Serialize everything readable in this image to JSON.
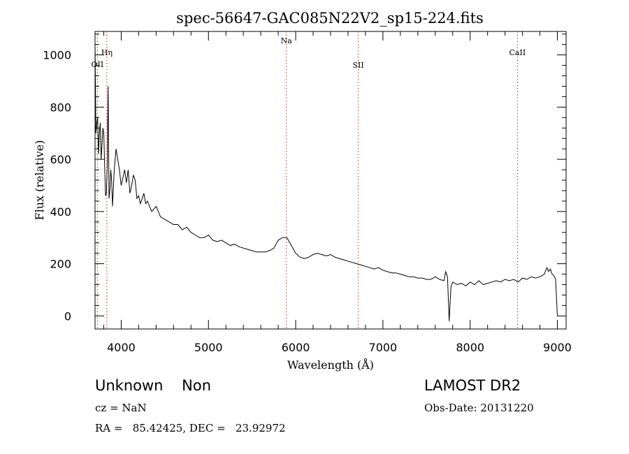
{
  "chart_data": {
    "type": "line",
    "title": "spec-56647-GAC085N22V2_sp15-224.fits",
    "xlabel": "Wavelength (Å)",
    "ylabel": "Flux (relative)",
    "xlim": [
      3700,
      9100
    ],
    "ylim": [
      -50,
      1090
    ],
    "xticks": [
      4000,
      5000,
      6000,
      7000,
      8000,
      9000
    ],
    "yticks": [
      0,
      200,
      400,
      600,
      800,
      1000
    ],
    "grid": false,
    "line_color": "#000000",
    "marker_color": "#c0504d",
    "line_markers": [
      {
        "label": "OII",
        "x": 3727
      },
      {
        "label": "Hη",
        "x": 3835
      },
      {
        "label": "Na",
        "x": 5893
      },
      {
        "label": "SII",
        "x": 6717
      },
      {
        "label": "CaII",
        "x": 8542
      }
    ],
    "series": [
      {
        "x": [
          3700,
          3710,
          3720,
          3730,
          3740,
          3750,
          3760,
          3770,
          3780,
          3790,
          3800,
          3810,
          3820,
          3830,
          3840,
          3850,
          3860,
          3870,
          3880,
          3890,
          3900,
          3920,
          3940,
          3960,
          3980,
          4000,
          4020,
          4040,
          4060,
          4080,
          4100,
          4120,
          4140,
          4160,
          4180,
          4200,
          4220,
          4240,
          4260,
          4280,
          4300,
          4350,
          4400,
          4450,
          4500,
          4550,
          4600,
          4650,
          4700,
          4750,
          4800,
          4850,
          4900,
          4950,
          5000,
          5050,
          5100,
          5150,
          5200,
          5250,
          5300,
          5350,
          5400,
          5450,
          5500,
          5550,
          5600,
          5650,
          5700,
          5750,
          5800,
          5850,
          5900,
          5950,
          6000,
          6050,
          6100,
          6150,
          6200,
          6250,
          6300,
          6350,
          6400,
          6450,
          6500,
          6550,
          6600,
          6650,
          6700,
          6750,
          6800,
          6850,
          6900,
          6950,
          7000,
          7050,
          7100,
          7150,
          7200,
          7250,
          7300,
          7350,
          7400,
          7450,
          7500,
          7550,
          7600,
          7650,
          7700,
          7720,
          7740,
          7760,
          7780,
          7800,
          7850,
          7900,
          7950,
          8000,
          8050,
          8100,
          8150,
          8200,
          8250,
          8300,
          8350,
          8400,
          8450,
          8500,
          8550,
          8600,
          8650,
          8700,
          8750,
          8800,
          8850,
          8880,
          8900,
          8920,
          8940,
          8960,
          8980,
          9000
        ],
        "y": [
          1040,
          700,
          740,
          760,
          620,
          700,
          740,
          600,
          660,
          720,
          700,
          580,
          460,
          470,
          580,
          880,
          450,
          480,
          560,
          520,
          420,
          560,
          640,
          600,
          560,
          500,
          530,
          560,
          510,
          560,
          470,
          500,
          540,
          520,
          450,
          460,
          430,
          450,
          470,
          430,
          440,
          400,
          420,
          380,
          370,
          360,
          350,
          350,
          330,
          340,
          320,
          310,
          300,
          300,
          310,
          290,
          285,
          290,
          280,
          270,
          275,
          265,
          260,
          255,
          250,
          245,
          245,
          245,
          250,
          260,
          290,
          300,
          300,
          270,
          240,
          225,
          220,
          225,
          235,
          240,
          235,
          230,
          235,
          225,
          220,
          215,
          210,
          205,
          200,
          195,
          190,
          185,
          180,
          185,
          175,
          170,
          165,
          165,
          160,
          155,
          150,
          150,
          145,
          145,
          140,
          140,
          150,
          140,
          135,
          170,
          150,
          -20,
          110,
          130,
          120,
          125,
          115,
          130,
          120,
          135,
          120,
          125,
          130,
          135,
          130,
          140,
          135,
          140,
          130,
          145,
          140,
          150,
          145,
          150,
          160,
          185,
          170,
          180,
          160,
          155,
          140,
          0
        ]
      }
    ]
  },
  "footer": {
    "class_label": "Unknown    Non",
    "survey": "LAMOST DR2",
    "cz": "cz = NaN",
    "obs_date": "Obs-Date: 20131220",
    "coords": "RA =   85.42425, DEC =   23.92972"
  }
}
